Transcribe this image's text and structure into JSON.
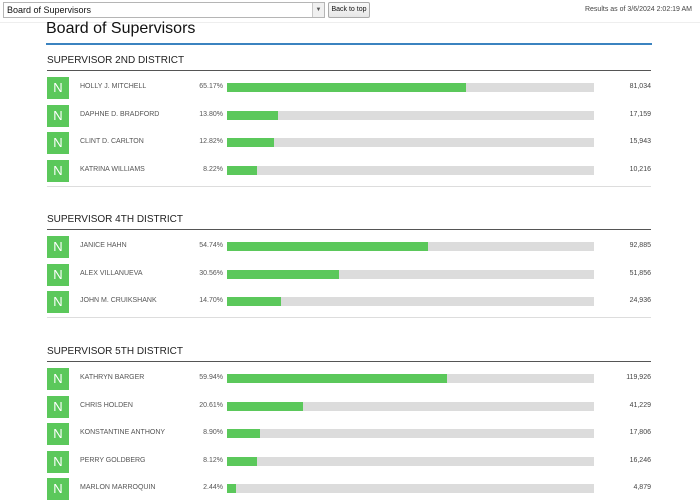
{
  "header": {
    "select_value": "Board of Supervisors",
    "back_to_top_label": "Back to top",
    "results_as_of": "Results as of 3/6/2024 2:02:19 AM"
  },
  "page": {
    "title": "Board of Supervisors"
  },
  "colors": {
    "bar_fill": "#5bc85b",
    "party_badge": "#5bc85b",
    "bar_track": "#dcdcdc",
    "title_rule": "#3b83c0"
  },
  "sections": [
    {
      "title": "SUPERVISOR 2ND DISTRICT",
      "candidates": [
        {
          "party": "N",
          "name": "HOLLY J. MITCHELL",
          "percent_label": "65.17%",
          "percent": 65.17,
          "votes": "81,034"
        },
        {
          "party": "N",
          "name": "DAPHNE D. BRADFORD",
          "percent_label": "13.80%",
          "percent": 13.8,
          "votes": "17,159"
        },
        {
          "party": "N",
          "name": "CLINT D. CARLTON",
          "percent_label": "12.82%",
          "percent": 12.82,
          "votes": "15,943"
        },
        {
          "party": "N",
          "name": "KATRINA WILLIAMS",
          "percent_label": "8.22%",
          "percent": 8.22,
          "votes": "10,216"
        }
      ]
    },
    {
      "title": "SUPERVISOR 4TH DISTRICT",
      "candidates": [
        {
          "party": "N",
          "name": "JANICE HAHN",
          "percent_label": "54.74%",
          "percent": 54.74,
          "votes": "92,885"
        },
        {
          "party": "N",
          "name": "ALEX VILLANUEVA",
          "percent_label": "30.56%",
          "percent": 30.56,
          "votes": "51,856"
        },
        {
          "party": "N",
          "name": "JOHN M. CRUIKSHANK",
          "percent_label": "14.70%",
          "percent": 14.7,
          "votes": "24,936"
        }
      ]
    },
    {
      "title": "SUPERVISOR 5TH DISTRICT",
      "candidates": [
        {
          "party": "N",
          "name": "KATHRYN BARGER",
          "percent_label": "59.94%",
          "percent": 59.94,
          "votes": "119,926"
        },
        {
          "party": "N",
          "name": "CHRIS HOLDEN",
          "percent_label": "20.61%",
          "percent": 20.61,
          "votes": "41,229"
        },
        {
          "party": "N",
          "name": "KONSTANTINE ANTHONY",
          "percent_label": "8.90%",
          "percent": 8.9,
          "votes": "17,806"
        },
        {
          "party": "N",
          "name": "PERRY GOLDBERG",
          "percent_label": "8.12%",
          "percent": 8.12,
          "votes": "16,246"
        },
        {
          "party": "N",
          "name": "MARLON MARROQUIN",
          "percent_label": "2.44%",
          "percent": 2.44,
          "votes": "4,879"
        }
      ]
    }
  ]
}
